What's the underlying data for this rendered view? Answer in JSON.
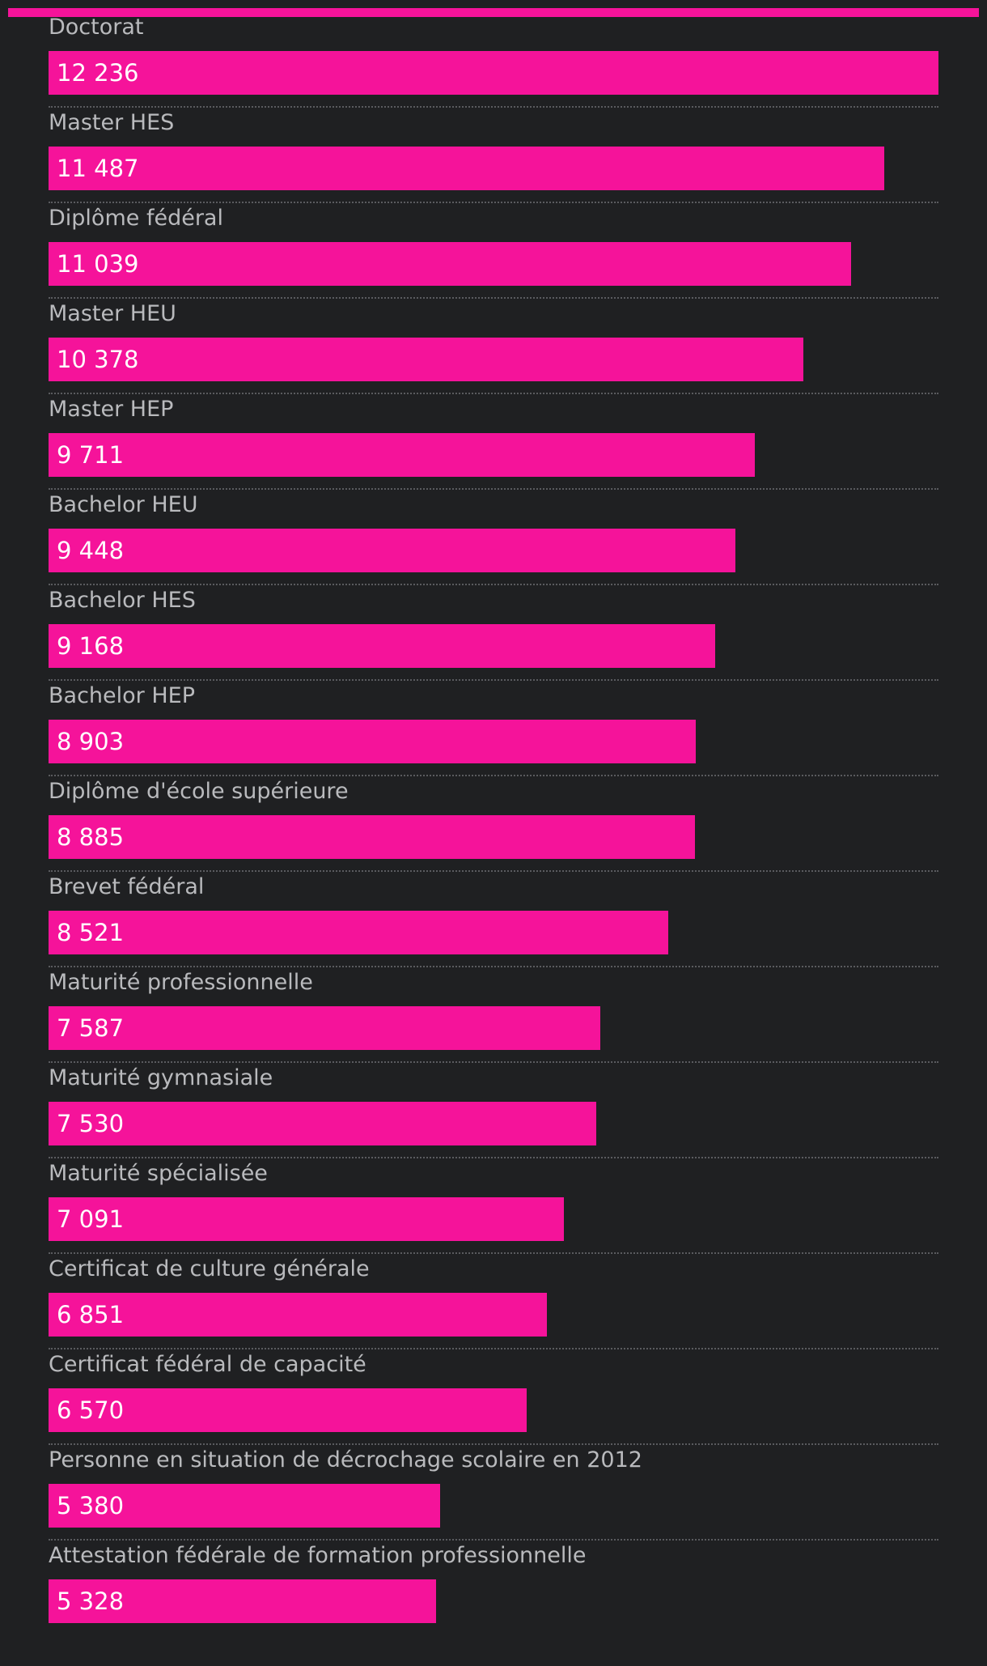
{
  "chart_data": {
    "type": "bar",
    "orientation": "horizontal",
    "bar_color": "#f5139a",
    "background": "#1f2022",
    "categories": [
      "Doctorat",
      "Master HES",
      "Diplôme fédéral",
      "Master HEU",
      "Master HEP",
      "Bachelor HEU",
      "Bachelor HES",
      "Bachelor HEP",
      "Diplôme d'école supérieure",
      "Brevet fédéral",
      "Maturité professionnelle",
      "Maturité gymnasiale",
      "Maturité spécialisée",
      "Certificat de culture générale",
      "Certificat fédéral de capacité",
      "Personne en situation de décrochage scolaire en 2012",
      "Attestation fédérale de formation professionnelle"
    ],
    "values": [
      12236,
      11487,
      11039,
      10378,
      9711,
      9448,
      9168,
      8903,
      8885,
      8521,
      7587,
      7530,
      7091,
      6851,
      6570,
      5380,
      5328
    ],
    "value_labels": [
      "12 236",
      "11 487",
      "11 039",
      "10 378",
      "9 711",
      "9 448",
      "9 168",
      "8 903",
      "8 885",
      "8 521",
      "7 587",
      "7 530",
      "7 091",
      "6 851",
      "6 570",
      "5 380",
      "5 328"
    ],
    "xlim": [
      0,
      12236
    ],
    "grid": false
  }
}
